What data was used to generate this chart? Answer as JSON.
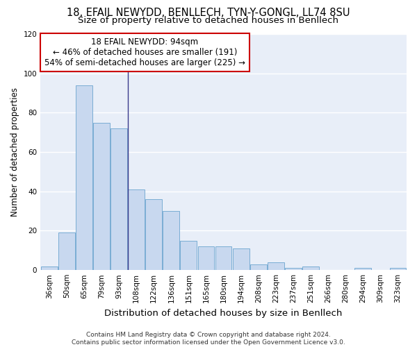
{
  "title_line1": "18, EFAIL NEWYDD, BENLLECH, TYN-Y-GONGL, LL74 8SU",
  "title_line2": "Size of property relative to detached houses in Benllech",
  "xlabel": "Distribution of detached houses by size in Benllech",
  "ylabel": "Number of detached properties",
  "categories": [
    "36sqm",
    "50sqm",
    "65sqm",
    "79sqm",
    "93sqm",
    "108sqm",
    "122sqm",
    "136sqm",
    "151sqm",
    "165sqm",
    "180sqm",
    "194sqm",
    "208sqm",
    "223sqm",
    "237sqm",
    "251sqm",
    "266sqm",
    "280sqm",
    "294sqm",
    "309sqm",
    "323sqm"
  ],
  "values": [
    2,
    19,
    94,
    75,
    72,
    41,
    36,
    30,
    15,
    12,
    12,
    11,
    3,
    4,
    1,
    2,
    0,
    0,
    1,
    0,
    1
  ],
  "bar_color": "#c8d8ef",
  "bar_edge_color": "#7aadd4",
  "vline_x": 4.5,
  "vline_color": "#3a3a8c",
  "ylim": [
    0,
    120
  ],
  "yticks": [
    0,
    20,
    40,
    60,
    80,
    100,
    120
  ],
  "annotation_text": "18 EFAIL NEWYDD: 94sqm\n← 46% of detached houses are smaller (191)\n54% of semi-detached houses are larger (225) →",
  "annotation_box_color": "#ffffff",
  "annotation_box_edge": "#cc0000",
  "footer": "Contains HM Land Registry data © Crown copyright and database right 2024.\nContains public sector information licensed under the Open Government Licence v3.0.",
  "bg_color": "#ffffff",
  "plot_bg_color": "#e8eef8",
  "grid_color": "#ffffff",
  "title_fontsize": 10.5,
  "subtitle_fontsize": 9.5,
  "tick_fontsize": 7.5,
  "ylabel_fontsize": 8.5,
  "xlabel_fontsize": 9.5,
  "footer_fontsize": 6.5,
  "ann_fontsize": 8.5
}
